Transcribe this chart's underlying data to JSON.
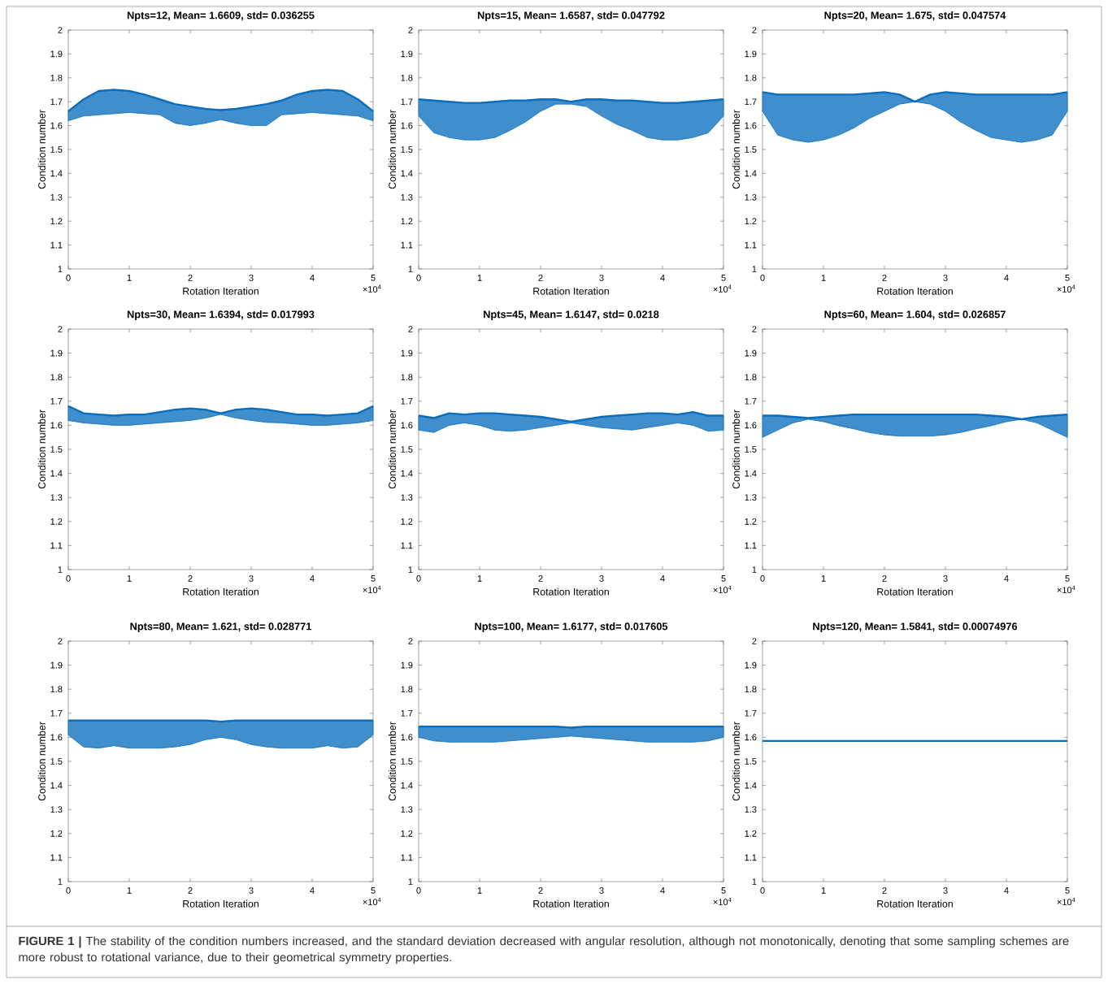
{
  "chart_data": [
    {
      "type": "line",
      "title": "Npts=12, Mean= 1.6609, std= 0.036255",
      "xlabel": "Rotation Iteration",
      "ylabel": "Condition number",
      "annotations": [
        "×10$^{4}$"
      ],
      "xlim": [
        0,
        5
      ],
      "ylim": [
        1,
        2
      ],
      "xticks": [
        0,
        1,
        2,
        3,
        4,
        5
      ],
      "yticks": [
        1,
        1.1,
        1.2,
        1.3,
        1.4,
        1.5,
        1.6,
        1.7,
        1.8,
        1.9,
        2
      ],
      "x": [
        0,
        0.25,
        0.5,
        0.75,
        1,
        1.25,
        1.5,
        1.75,
        2,
        2.25,
        2.5,
        2.75,
        3,
        3.25,
        3.5,
        3.75,
        4,
        4.25,
        4.5,
        4.75,
        5
      ],
      "series": [
        {
          "color": "#0a6ebd",
          "values": [
            1.66,
            1.71,
            1.745,
            1.75,
            1.745,
            1.73,
            1.71,
            1.69,
            1.68,
            1.67,
            1.665,
            1.67,
            1.68,
            1.69,
            1.705,
            1.73,
            1.745,
            1.75,
            1.745,
            1.71,
            1.66
          ],
          "upper": [
            1.66,
            1.71,
            1.745,
            1.75,
            1.745,
            1.73,
            1.71,
            1.69,
            1.68,
            1.67,
            1.665,
            1.67,
            1.68,
            1.69,
            1.705,
            1.73,
            1.745,
            1.75,
            1.745,
            1.71,
            1.66
          ],
          "lower": [
            1.62,
            1.64,
            1.645,
            1.65,
            1.655,
            1.65,
            1.645,
            1.61,
            1.6,
            1.61,
            1.625,
            1.61,
            1.6,
            1.6,
            1.645,
            1.65,
            1.655,
            1.65,
            1.645,
            1.64,
            1.62
          ]
        }
      ]
    },
    {
      "type": "line",
      "title": "Npts=15, Mean= 1.6587, std= 0.047792",
      "xlabel": "Rotation Iteration",
      "ylabel": "Condition number",
      "annotations": [
        "×10$^{4}$"
      ],
      "xlim": [
        0,
        5
      ],
      "ylim": [
        1,
        2
      ],
      "xticks": [
        0,
        1,
        2,
        3,
        4,
        5
      ],
      "yticks": [
        1,
        1.1,
        1.2,
        1.3,
        1.4,
        1.5,
        1.6,
        1.7,
        1.8,
        1.9,
        2
      ],
      "x": [
        0,
        0.25,
        0.5,
        0.75,
        1,
        1.25,
        1.5,
        1.75,
        2,
        2.25,
        2.5,
        2.75,
        3,
        3.25,
        3.5,
        3.75,
        4,
        4.25,
        4.5,
        4.75,
        5
      ],
      "series": [
        {
          "color": "#0a6ebd",
          "values": [
            1.71,
            1.705,
            1.7,
            1.695,
            1.695,
            1.7,
            1.705,
            1.705,
            1.71,
            1.71,
            1.7,
            1.71,
            1.71,
            1.705,
            1.705,
            1.7,
            1.695,
            1.695,
            1.7,
            1.705,
            1.71
          ],
          "upper": [
            1.71,
            1.705,
            1.7,
            1.695,
            1.695,
            1.7,
            1.705,
            1.705,
            1.71,
            1.71,
            1.7,
            1.71,
            1.71,
            1.705,
            1.705,
            1.7,
            1.695,
            1.695,
            1.7,
            1.705,
            1.71
          ],
          "lower": [
            1.64,
            1.57,
            1.55,
            1.54,
            1.54,
            1.55,
            1.58,
            1.615,
            1.66,
            1.69,
            1.69,
            1.68,
            1.64,
            1.605,
            1.58,
            1.55,
            1.54,
            1.54,
            1.55,
            1.57,
            1.64
          ]
        }
      ]
    },
    {
      "type": "line",
      "title": "Npts=20, Mean= 1.675, std= 0.047574",
      "xlabel": "Rotation Iteration",
      "ylabel": "Condition number",
      "annotations": [
        "×10$^{4}$"
      ],
      "xlim": [
        0,
        5
      ],
      "ylim": [
        1,
        2
      ],
      "xticks": [
        0,
        1,
        2,
        3,
        4,
        5
      ],
      "yticks": [
        1,
        1.1,
        1.2,
        1.3,
        1.4,
        1.5,
        1.6,
        1.7,
        1.8,
        1.9,
        2
      ],
      "x": [
        0,
        0.25,
        0.5,
        0.75,
        1,
        1.25,
        1.5,
        1.75,
        2,
        2.25,
        2.5,
        2.75,
        3,
        3.25,
        3.5,
        3.75,
        4,
        4.25,
        4.5,
        4.75,
        5
      ],
      "series": [
        {
          "color": "#0a6ebd",
          "values": [
            1.74,
            1.73,
            1.73,
            1.73,
            1.73,
            1.73,
            1.73,
            1.735,
            1.74,
            1.73,
            1.7,
            1.73,
            1.74,
            1.735,
            1.73,
            1.73,
            1.73,
            1.73,
            1.73,
            1.73,
            1.74
          ],
          "upper": [
            1.74,
            1.73,
            1.73,
            1.73,
            1.73,
            1.73,
            1.73,
            1.735,
            1.74,
            1.73,
            1.7,
            1.73,
            1.74,
            1.735,
            1.73,
            1.73,
            1.73,
            1.73,
            1.73,
            1.73,
            1.74
          ],
          "lower": [
            1.66,
            1.56,
            1.54,
            1.53,
            1.54,
            1.56,
            1.59,
            1.63,
            1.66,
            1.69,
            1.7,
            1.69,
            1.66,
            1.615,
            1.58,
            1.55,
            1.54,
            1.53,
            1.54,
            1.56,
            1.66
          ]
        }
      ]
    },
    {
      "type": "line",
      "title": "Npts=30, Mean= 1.6394, std= 0.017993",
      "xlabel": "Rotation Iteration",
      "ylabel": "Condition number",
      "annotations": [
        "×10$^{4}$"
      ],
      "xlim": [
        0,
        5
      ],
      "ylim": [
        1,
        2
      ],
      "xticks": [
        0,
        1,
        2,
        3,
        4,
        5
      ],
      "yticks": [
        1,
        1.1,
        1.2,
        1.3,
        1.4,
        1.5,
        1.6,
        1.7,
        1.8,
        1.9,
        2
      ],
      "x": [
        0,
        0.25,
        0.5,
        0.75,
        1,
        1.25,
        1.5,
        1.75,
        2,
        2.25,
        2.5,
        2.75,
        3,
        3.25,
        3.5,
        3.75,
        4,
        4.25,
        4.5,
        4.75,
        5
      ],
      "series": [
        {
          "color": "#0a6ebd",
          "values": [
            1.68,
            1.65,
            1.645,
            1.64,
            1.645,
            1.645,
            1.655,
            1.665,
            1.67,
            1.665,
            1.65,
            1.665,
            1.67,
            1.665,
            1.655,
            1.645,
            1.645,
            1.64,
            1.645,
            1.65,
            1.68
          ],
          "upper": [
            1.68,
            1.65,
            1.645,
            1.64,
            1.645,
            1.645,
            1.655,
            1.665,
            1.67,
            1.665,
            1.65,
            1.665,
            1.67,
            1.665,
            1.655,
            1.645,
            1.645,
            1.64,
            1.645,
            1.65,
            1.68
          ],
          "lower": [
            1.62,
            1.61,
            1.605,
            1.6,
            1.6,
            1.605,
            1.61,
            1.615,
            1.62,
            1.63,
            1.645,
            1.63,
            1.62,
            1.612,
            1.61,
            1.605,
            1.6,
            1.6,
            1.605,
            1.61,
            1.62
          ]
        }
      ]
    },
    {
      "type": "line",
      "title": "Npts=45, Mean= 1.6147, std= 0.0218",
      "xlabel": "Rotation Iteration",
      "ylabel": "Condition number",
      "annotations": [
        "×10$^{4}$"
      ],
      "xlim": [
        0,
        5
      ],
      "ylim": [
        1,
        2
      ],
      "xticks": [
        0,
        1,
        2,
        3,
        4,
        5
      ],
      "yticks": [
        1,
        1.1,
        1.2,
        1.3,
        1.4,
        1.5,
        1.6,
        1.7,
        1.8,
        1.9,
        2
      ],
      "x": [
        0,
        0.25,
        0.5,
        0.75,
        1,
        1.25,
        1.5,
        1.75,
        2,
        2.25,
        2.5,
        2.75,
        3,
        3.25,
        3.5,
        3.75,
        4,
        4.25,
        4.5,
        4.75,
        5
      ],
      "series": [
        {
          "color": "#0a6ebd",
          "values": [
            1.64,
            1.63,
            1.65,
            1.645,
            1.65,
            1.65,
            1.645,
            1.64,
            1.635,
            1.625,
            1.615,
            1.625,
            1.635,
            1.64,
            1.645,
            1.65,
            1.65,
            1.645,
            1.655,
            1.64,
            1.64
          ],
          "upper": [
            1.64,
            1.63,
            1.65,
            1.645,
            1.65,
            1.65,
            1.645,
            1.64,
            1.635,
            1.625,
            1.615,
            1.625,
            1.635,
            1.64,
            1.645,
            1.65,
            1.65,
            1.645,
            1.655,
            1.64,
            1.64
          ],
          "lower": [
            1.58,
            1.57,
            1.6,
            1.61,
            1.6,
            1.58,
            1.575,
            1.58,
            1.59,
            1.6,
            1.61,
            1.6,
            1.59,
            1.585,
            1.58,
            1.59,
            1.6,
            1.61,
            1.6,
            1.575,
            1.58
          ]
        }
      ]
    },
    {
      "type": "line",
      "title": "Npts=60, Mean= 1.604, std= 0.026857",
      "xlabel": "Rotation Iteration",
      "ylabel": "Condition number",
      "annotations": [
        "×10$^{4}$"
      ],
      "xlim": [
        0,
        5
      ],
      "ylim": [
        1,
        2
      ],
      "xticks": [
        0,
        1,
        2,
        3,
        4,
        5
      ],
      "yticks": [
        1,
        1.1,
        1.2,
        1.3,
        1.4,
        1.5,
        1.6,
        1.7,
        1.8,
        1.9,
        2
      ],
      "x": [
        0,
        0.25,
        0.5,
        0.75,
        1,
        1.25,
        1.5,
        1.75,
        2,
        2.25,
        2.5,
        2.75,
        3,
        3.25,
        3.5,
        3.75,
        4,
        4.25,
        4.5,
        4.75,
        5
      ],
      "series": [
        {
          "color": "#0a6ebd",
          "values": [
            1.64,
            1.64,
            1.635,
            1.63,
            1.635,
            1.64,
            1.645,
            1.645,
            1.645,
            1.645,
            1.645,
            1.645,
            1.645,
            1.645,
            1.645,
            1.64,
            1.635,
            1.625,
            1.635,
            1.64,
            1.645
          ],
          "upper": [
            1.64,
            1.64,
            1.635,
            1.63,
            1.635,
            1.64,
            1.645,
            1.645,
            1.645,
            1.645,
            1.645,
            1.645,
            1.645,
            1.645,
            1.645,
            1.64,
            1.635,
            1.625,
            1.635,
            1.64,
            1.645
          ],
          "lower": [
            1.55,
            1.58,
            1.61,
            1.625,
            1.615,
            1.598,
            1.585,
            1.57,
            1.56,
            1.555,
            1.555,
            1.555,
            1.56,
            1.57,
            1.585,
            1.598,
            1.615,
            1.625,
            1.61,
            1.58,
            1.55
          ]
        }
      ]
    },
    {
      "type": "line",
      "title": "Npts=80, Mean= 1.621, std= 0.028771",
      "xlabel": "Rotation Iteration",
      "ylabel": "Condition number",
      "annotations": [
        "×10$^{4}$"
      ],
      "xlim": [
        0,
        5
      ],
      "ylim": [
        1,
        2
      ],
      "xticks": [
        0,
        1,
        2,
        3,
        4,
        5
      ],
      "yticks": [
        1,
        1.1,
        1.2,
        1.3,
        1.4,
        1.5,
        1.6,
        1.7,
        1.8,
        1.9,
        2
      ],
      "x": [
        0,
        0.25,
        0.5,
        0.75,
        1,
        1.25,
        1.5,
        1.75,
        2,
        2.25,
        2.5,
        2.75,
        3,
        3.25,
        3.5,
        3.75,
        4,
        4.25,
        4.5,
        4.75,
        5
      ],
      "series": [
        {
          "color": "#0a6ebd",
          "values": [
            1.67,
            1.67,
            1.67,
            1.67,
            1.67,
            1.67,
            1.67,
            1.67,
            1.67,
            1.67,
            1.665,
            1.67,
            1.67,
            1.67,
            1.67,
            1.67,
            1.67,
            1.67,
            1.67,
            1.67,
            1.67
          ],
          "upper": [
            1.67,
            1.67,
            1.67,
            1.67,
            1.67,
            1.67,
            1.67,
            1.67,
            1.67,
            1.67,
            1.665,
            1.67,
            1.67,
            1.67,
            1.67,
            1.67,
            1.67,
            1.67,
            1.67,
            1.67,
            1.67
          ],
          "lower": [
            1.61,
            1.56,
            1.555,
            1.565,
            1.555,
            1.555,
            1.555,
            1.56,
            1.57,
            1.59,
            1.6,
            1.59,
            1.57,
            1.56,
            1.555,
            1.555,
            1.555,
            1.565,
            1.555,
            1.56,
            1.61
          ]
        }
      ]
    },
    {
      "type": "line",
      "title": "Npts=100, Mean= 1.6177, std= 0.017605",
      "xlabel": "Rotation Iteration",
      "ylabel": "Condition number",
      "annotations": [
        "×10$^{4}$"
      ],
      "xlim": [
        0,
        5
      ],
      "ylim": [
        1,
        2
      ],
      "xticks": [
        0,
        1,
        2,
        3,
        4,
        5
      ],
      "yticks": [
        1,
        1.1,
        1.2,
        1.3,
        1.4,
        1.5,
        1.6,
        1.7,
        1.8,
        1.9,
        2
      ],
      "x": [
        0,
        0.25,
        0.5,
        0.75,
        1,
        1.25,
        1.5,
        1.75,
        2,
        2.25,
        2.5,
        2.75,
        3,
        3.25,
        3.5,
        3.75,
        4,
        4.25,
        4.5,
        4.75,
        5
      ],
      "series": [
        {
          "color": "#0a6ebd",
          "values": [
            1.645,
            1.645,
            1.645,
            1.645,
            1.645,
            1.645,
            1.645,
            1.645,
            1.645,
            1.645,
            1.64,
            1.645,
            1.645,
            1.645,
            1.645,
            1.645,
            1.645,
            1.645,
            1.645,
            1.645,
            1.645
          ],
          "upper": [
            1.645,
            1.645,
            1.645,
            1.645,
            1.645,
            1.645,
            1.645,
            1.645,
            1.645,
            1.645,
            1.64,
            1.645,
            1.645,
            1.645,
            1.645,
            1.645,
            1.645,
            1.645,
            1.645,
            1.645,
            1.645
          ],
          "lower": [
            1.6,
            1.585,
            1.58,
            1.58,
            1.58,
            1.58,
            1.585,
            1.59,
            1.595,
            1.6,
            1.605,
            1.6,
            1.595,
            1.59,
            1.585,
            1.58,
            1.58,
            1.58,
            1.58,
            1.585,
            1.6
          ]
        }
      ]
    },
    {
      "type": "line",
      "title": "Npts=120, Mean= 1.5841, std= 0.00074976",
      "xlabel": "Rotation Iteration",
      "ylabel": "Condition number",
      "annotations": [
        "×10$^{4}$",
        "**FIGURE 1 |** The stability of the condition numbers increased, and the standard deviation decreased with angular resolution, although not monotonically, denoting that some sampling schemes are more robust to rotational variance, due to their geometrical symmetry properties."
      ],
      "xlim": [
        0,
        5
      ],
      "ylim": [
        1,
        2
      ],
      "xticks": [
        0,
        1,
        2,
        3,
        4,
        5
      ],
      "yticks": [
        1,
        1.1,
        1.2,
        1.3,
        1.4,
        1.5,
        1.6,
        1.7,
        1.8,
        1.9,
        2
      ],
      "x": [
        0,
        1,
        2,
        3,
        4,
        5
      ],
      "series": [
        {
          "color": "#0a6ebd",
          "values": [
            1.585,
            1.585,
            1.585,
            1.585,
            1.585,
            1.585
          ]
        }
      ]
    }
  ]
}
